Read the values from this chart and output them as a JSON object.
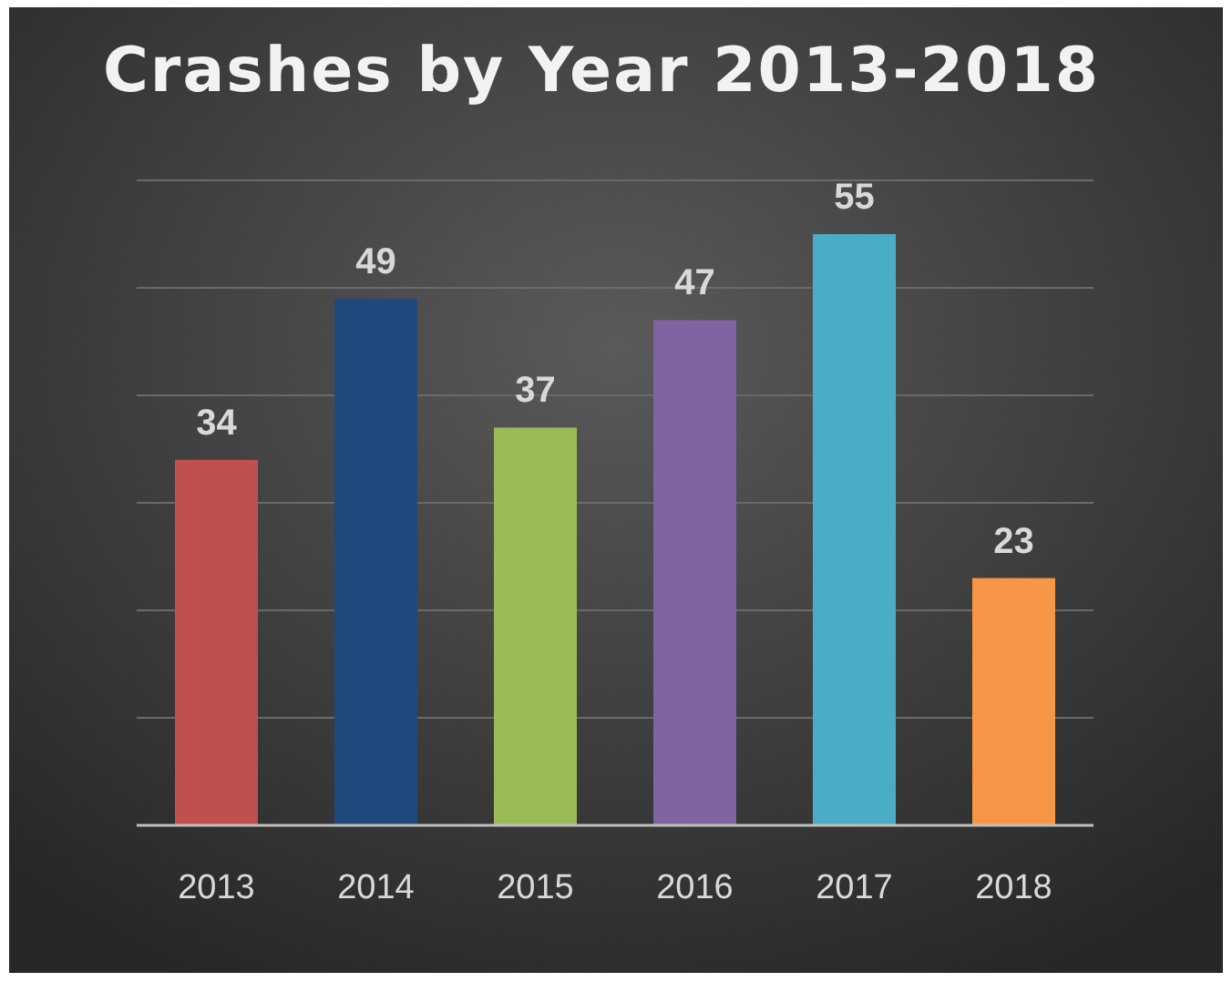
{
  "chart_data": {
    "type": "bar",
    "title": "Crashes by Year 2013-2018",
    "categories": [
      "2013",
      "2014",
      "2015",
      "2016",
      "2017",
      "2018"
    ],
    "values": [
      34,
      49,
      37,
      47,
      55,
      23
    ],
    "colors": [
      "#c0504d",
      "#1f497d",
      "#9bbb59",
      "#8064a2",
      "#4bacc6",
      "#f79646"
    ],
    "ylim": [
      0,
      60
    ],
    "yticks": [
      {
        "value": 0,
        "label": null
      },
      {
        "value": 10,
        "label": null
      },
      {
        "value": 20,
        "label": null
      },
      {
        "value": 30,
        "label": null
      },
      {
        "value": 40,
        "label": null
      },
      {
        "value": 50,
        "label": null
      },
      {
        "value": 60,
        "label": null
      }
    ],
    "grid": "y",
    "tick_labels": "x",
    "data_labels": true
  }
}
